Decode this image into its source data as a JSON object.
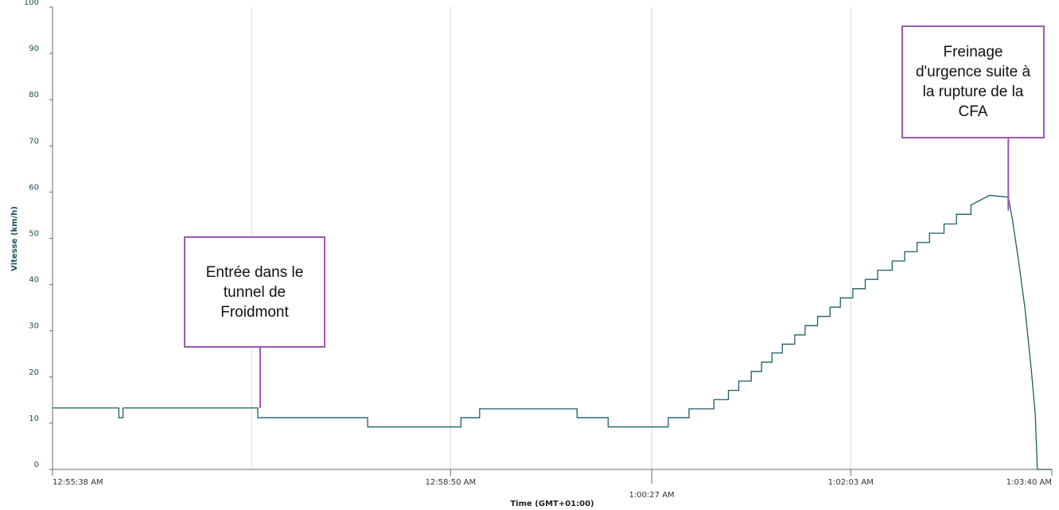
{
  "chart_data": {
    "type": "line",
    "step": true,
    "ylabel": "Vitesse (km/h)",
    "xlabel": "Time (GMT+01:00)",
    "ylim": [
      0,
      100
    ],
    "yticks": [
      0,
      10,
      20,
      30,
      40,
      50,
      60,
      70,
      80,
      90,
      100
    ],
    "xlim": [
      "12:55:38 AM",
      "1:03:40 AM"
    ],
    "xticks": [
      "12:55:38 AM",
      "12:58:50 AM",
      "1:00:27 AM",
      "1:02:03 AM",
      "1:03:40 AM"
    ],
    "grid": "vertical",
    "series": [
      {
        "color": "#1b5e66",
        "points": [
          [
            "12:55:38 AM",
            13.3
          ],
          [
            "12:56:10 AM",
            11.2
          ],
          [
            "12:56:12 AM",
            13.3
          ],
          [
            "12:57:17 AM",
            11.2
          ],
          [
            "12:58:10 AM",
            9.2
          ],
          [
            "12:58:55 AM",
            11.2
          ],
          [
            "12:59:04 AM",
            13.1
          ],
          [
            "12:59:51 AM",
            11.2
          ],
          [
            "1:00:06 AM",
            9.2
          ],
          [
            "1:00:35 AM",
            11.2
          ],
          [
            "1:00:45 AM",
            13.1
          ],
          [
            "1:00:57 AM",
            15.1
          ],
          [
            "1:01:04 AM",
            17.1
          ],
          [
            "1:01:09 AM",
            19.1
          ],
          [
            "1:01:15 AM",
            21.2
          ],
          [
            "1:01:20 AM",
            23.2
          ],
          [
            "1:01:25 AM",
            25.2
          ],
          [
            "1:01:30 AM",
            27.1
          ],
          [
            "1:01:36 AM",
            29.1
          ],
          [
            "1:01:41 AM",
            31.1
          ],
          [
            "1:01:47 AM",
            33.1
          ],
          [
            "1:01:53 AM",
            35.1
          ],
          [
            "1:01:58 AM",
            37.1
          ],
          [
            "1:02:04 AM",
            39.1
          ],
          [
            "1:02:10 AM",
            41.1
          ],
          [
            "1:02:16 AM",
            43.1
          ],
          [
            "1:02:23 AM",
            45.1
          ],
          [
            "1:02:29 AM",
            47.1
          ],
          [
            "1:02:35 AM",
            49.1
          ],
          [
            "1:02:41 AM",
            51.1
          ],
          [
            "1:02:48 AM",
            53.1
          ],
          [
            "1:02:54 AM",
            55.2
          ],
          [
            "1:03:01 AM",
            57.2
          ],
          [
            "1:03:10 AM",
            59.3
          ],
          [
            "1:03:19 AM",
            58.9
          ],
          [
            "1:03:21 AM",
            54
          ],
          [
            "1:03:24 AM",
            45
          ],
          [
            "1:03:27 AM",
            35
          ],
          [
            "1:03:30 AM",
            22
          ],
          [
            "1:03:32 AM",
            12
          ],
          [
            "1:03:33 AM",
            0
          ],
          [
            "1:03:40 AM",
            0
          ]
        ]
      }
    ],
    "annotations": [
      {
        "text": "Entrée dans le\ntunnel de\nFroidmont",
        "time": "12:57:17 AM",
        "value": 13.3
      },
      {
        "text": "Freinage\nd'urgence suite à\nla rupture de la\nCFA",
        "time": "1:03:19 AM",
        "value": 56
      }
    ]
  }
}
